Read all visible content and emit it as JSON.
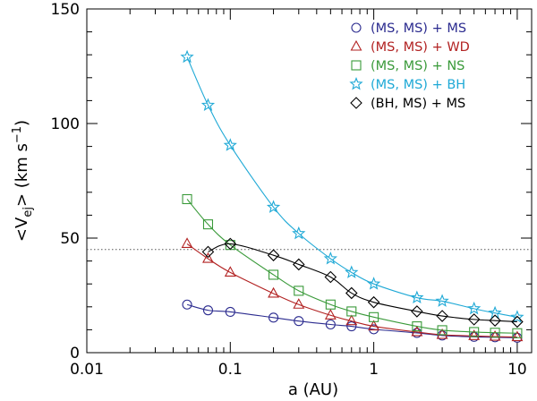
{
  "chart_data": {
    "type": "line",
    "title": "",
    "xlabel": "a (AU)",
    "ylabel": "<V_ej> (km s^-1)",
    "ylabel_parts": {
      "open": "<V",
      "sub": "ej",
      "close": "> (km s",
      "sup": "−1",
      "end": ")"
    },
    "xscale": "log",
    "xlim": [
      0.01,
      12.6
    ],
    "ylim": [
      0,
      150
    ],
    "xticks": [
      {
        "value": 0.01,
        "label": "0.01"
      },
      {
        "value": 0.1,
        "label": "0.1"
      },
      {
        "value": 1,
        "label": "1"
      },
      {
        "value": 10,
        "label": "10"
      }
    ],
    "yticks": [
      {
        "value": 0,
        "label": "0"
      },
      {
        "value": 50,
        "label": "50"
      },
      {
        "value": 100,
        "label": "100"
      },
      {
        "value": 150,
        "label": "150"
      }
    ],
    "reference_line": {
      "y": 45,
      "style": "dotted"
    },
    "legend_position": "top-right",
    "series": [
      {
        "name": "(MS, MS) + MS",
        "marker": "circle",
        "color": "#2b2b8f",
        "x": [
          0.05,
          0.07,
          0.1,
          0.2,
          0.3,
          0.5,
          0.7,
          1,
          2,
          3,
          5,
          7,
          10
        ],
        "y": [
          21,
          18.5,
          17.8,
          15.3,
          13.8,
          12.3,
          11.5,
          10.2,
          8.6,
          7.5,
          6.9,
          6.7,
          6.5
        ]
      },
      {
        "name": "(MS, MS) + WD",
        "marker": "triangle",
        "color": "#b22222",
        "x": [
          0.05,
          0.07,
          0.1,
          0.2,
          0.3,
          0.5,
          0.7,
          1,
          2,
          3,
          5,
          7,
          10
        ],
        "y": [
          47.5,
          41,
          35,
          25.8,
          21,
          16.3,
          13.8,
          11.5,
          9,
          7.8,
          7.3,
          7,
          6.8
        ]
      },
      {
        "name": "(MS, MS) + NS",
        "marker": "square",
        "color": "#3a9a3a",
        "x": [
          0.05,
          0.07,
          0.1,
          0.2,
          0.3,
          0.5,
          0.7,
          1,
          2,
          3,
          5,
          7,
          10
        ],
        "y": [
          67,
          56,
          47,
          34,
          27,
          21,
          18,
          15.5,
          11.5,
          9.8,
          9,
          8.7,
          8.5
        ]
      },
      {
        "name": "(MS, MS) + BH",
        "marker": "star",
        "color": "#1fa9d6",
        "x": [
          0.05,
          0.07,
          0.1,
          0.2,
          0.3,
          0.5,
          0.7,
          1,
          2,
          3,
          5,
          7,
          10
        ],
        "y": [
          129,
          108,
          90.5,
          63.5,
          52,
          41,
          35,
          30,
          24,
          22.5,
          19.2,
          17.3,
          15.5
        ]
      },
      {
        "name": "(BH, MS) + MS",
        "marker": "diamond",
        "color": "#000000",
        "x": [
          0.07,
          0.1,
          0.2,
          0.3,
          0.5,
          0.7,
          1,
          2,
          3,
          5,
          7,
          10
        ],
        "y": [
          44,
          47.5,
          42.5,
          38.5,
          33,
          26,
          22,
          18,
          16,
          14.5,
          14,
          13.5
        ]
      }
    ]
  }
}
